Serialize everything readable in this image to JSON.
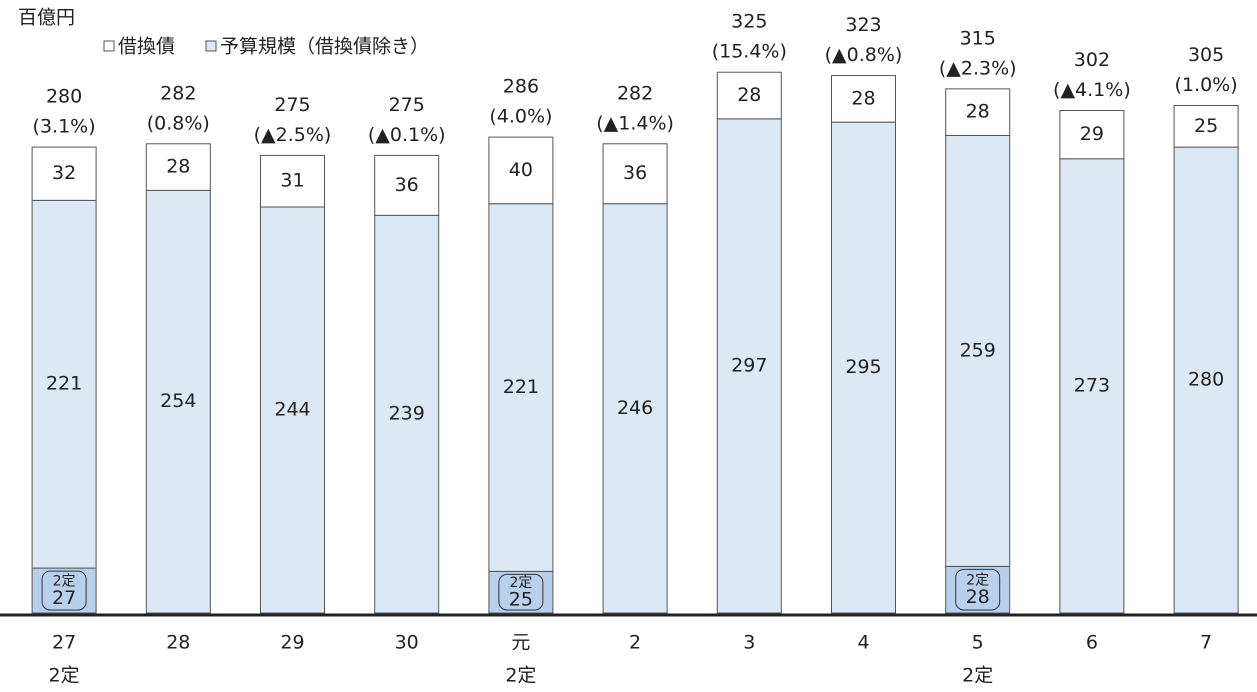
{
  "chart_data": {
    "type": "stacked-bar",
    "unit": "百億円",
    "categories": [
      "27",
      "28",
      "29",
      "30",
      "元",
      "2",
      "3",
      "4",
      "5",
      "6",
      "7"
    ],
    "category_sublabels": [
      "2定",
      null,
      null,
      null,
      "2定",
      null,
      null,
      null,
      "2定",
      null,
      null
    ],
    "series": [
      {
        "name": "借換債",
        "color": "#ffffff",
        "values": [
          32,
          28,
          31,
          36,
          40,
          36,
          28,
          28,
          28,
          29,
          25
        ]
      },
      {
        "name": "予算規模（借換債除き）",
        "color": "#dde8f5",
        "values": [
          221,
          254,
          244,
          239,
          221,
          246,
          297,
          295,
          259,
          273,
          280
        ]
      },
      {
        "name": "2定",
        "color": "#b9d0ec",
        "in_legend": false,
        "values": [
          27,
          null,
          null,
          null,
          25,
          null,
          null,
          null,
          28,
          null,
          null
        ]
      }
    ],
    "totals": [
      280,
      282,
      275,
      275,
      286,
      282,
      325,
      323,
      315,
      302,
      305
    ],
    "changes": {
      "values": [
        3.1,
        0.8,
        -2.5,
        -0.1,
        4.0,
        -1.4,
        15.4,
        -0.8,
        -2.3,
        -4.1,
        1.0
      ],
      "value_labels": [
        "(3.1%)",
        "(0.8%)",
        "(▲2.5%)",
        "(▲0.1%)",
        "(4.0%)",
        "(▲1.4%)",
        "(15.4%)",
        "(▲0.8%)",
        "(▲2.3%)",
        "(▲4.1%)",
        "(1.0%)"
      ]
    },
    "ylim": [
      0,
      360
    ]
  }
}
